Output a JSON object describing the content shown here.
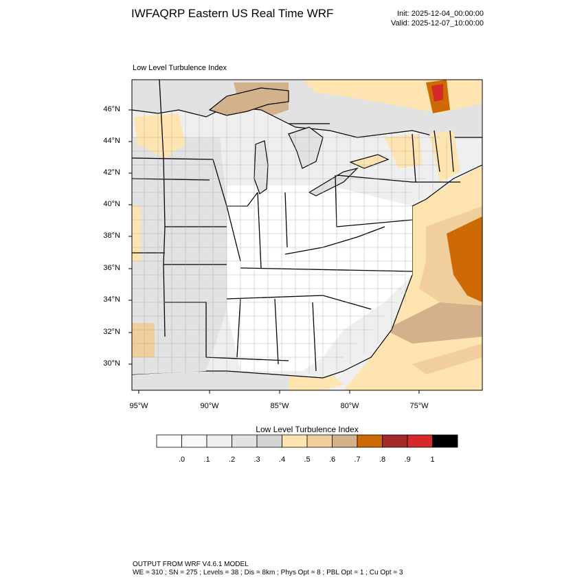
{
  "header": {
    "title": "IWFAQRP Eastern US Real Time WRF",
    "init": "Init: 2025-12-04_00:00:00",
    "valid": "Valid: 2025-12-07_10:00:00"
  },
  "map": {
    "subtitle": "Low Level Turbulence Index",
    "lat_labels": [
      "46°N",
      "44°N",
      "42°N",
      "40°N",
      "38°N",
      "36°N",
      "34°N",
      "32°N",
      "30°N"
    ],
    "lon_labels": [
      "95°W",
      "90°W",
      "85°W",
      "80°W",
      "75°W"
    ]
  },
  "colorbar": {
    "title": "Low Level Turbulence Index",
    "colors": [
      "#ffffff",
      "#f9f9f9",
      "#efefef",
      "#e2e2e2",
      "#d4d4d4",
      "#fde4b0",
      "#f1cf9c",
      "#d3b28b",
      "#cd6a05",
      "#a52a2a",
      "#d42a2a",
      "#000000"
    ],
    "tick_labels": [
      ".0",
      ".1",
      ".2",
      ".3",
      ".4",
      ".5",
      ".6",
      ".7",
      ".8",
      ".9",
      "1"
    ]
  },
  "footer": {
    "line1": "OUTPUT FROM WRF V4.6.1 MODEL",
    "line2": "WE = 310 ; SN = 275 ; Levels = 38 ; Dis = 8km ; Phys Opt = 8 ; PBL Opt = 1 ; Cu Opt = 3"
  }
}
